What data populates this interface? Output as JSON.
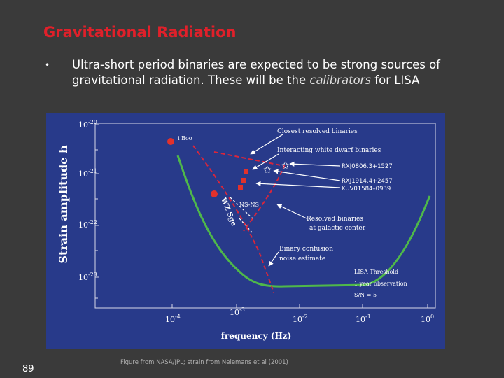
{
  "slide": {
    "title": "Gravitational Radiation",
    "bullet": {
      "text_before": "Ultra-short period binaries are expected to be strong sources of gravitational radiation. These will be the ",
      "emphasis": "calibrators",
      "text_after": " for LISA"
    },
    "caption": "Figure from NASA/JPL; strain from Nelemans et al (2001)",
    "page_number": "89"
  },
  "figure": {
    "y_axis_label": "Strain amplitude h",
    "x_axis_label": "frequency (Hz)",
    "x_ticks": [
      {
        "base": "10",
        "exp": "-4",
        "value": 0.0001
      },
      {
        "base": "10",
        "exp": "-3",
        "value": 0.001
      },
      {
        "base": "10",
        "exp": "-2",
        "value": 0.01
      },
      {
        "base": "10",
        "exp": "-1",
        "value": 0.1
      },
      {
        "base": "10",
        "exp": "0",
        "value": 1
      }
    ],
    "y_ticks": [
      {
        "base": "10",
        "exp": "-20",
        "value": 1e-20
      },
      {
        "base": "10",
        "exp": "-21",
        "value": 1e-21
      },
      {
        "base": "10",
        "exp": "-22",
        "value": 1e-22
      },
      {
        "base": "10",
        "exp": "-23",
        "value": 1e-23
      }
    ],
    "annotations": {
      "closest_resolved": "Closest resolved binaries",
      "interacting_wd": "Interacting white dwarf binaries",
      "ibo": "i Boo",
      "nsns": "NS-NS",
      "wz_sge": "WZ Sge",
      "resolved_line1": "Resolved binaries",
      "resolved_line2": "at galactic center",
      "confusion_line1": "Binary confusion",
      "confusion_line2": "noise estimate",
      "lisa_line1": "LISA Threshold",
      "lisa_line2": "1 year observation",
      "lisa_line3": "S/N = 5",
      "rxj0806": "RXJ0806.3+1527",
      "rxj1914": "RXJ1914.4+2457",
      "kuv": "KUV01584–0939"
    },
    "colors": {
      "background": "#283a8a",
      "lisa_curve": "#4fb84a",
      "confusion_curve": "#d8263c",
      "source_points": "#e2312c",
      "labels": "#ffffff"
    }
  }
}
